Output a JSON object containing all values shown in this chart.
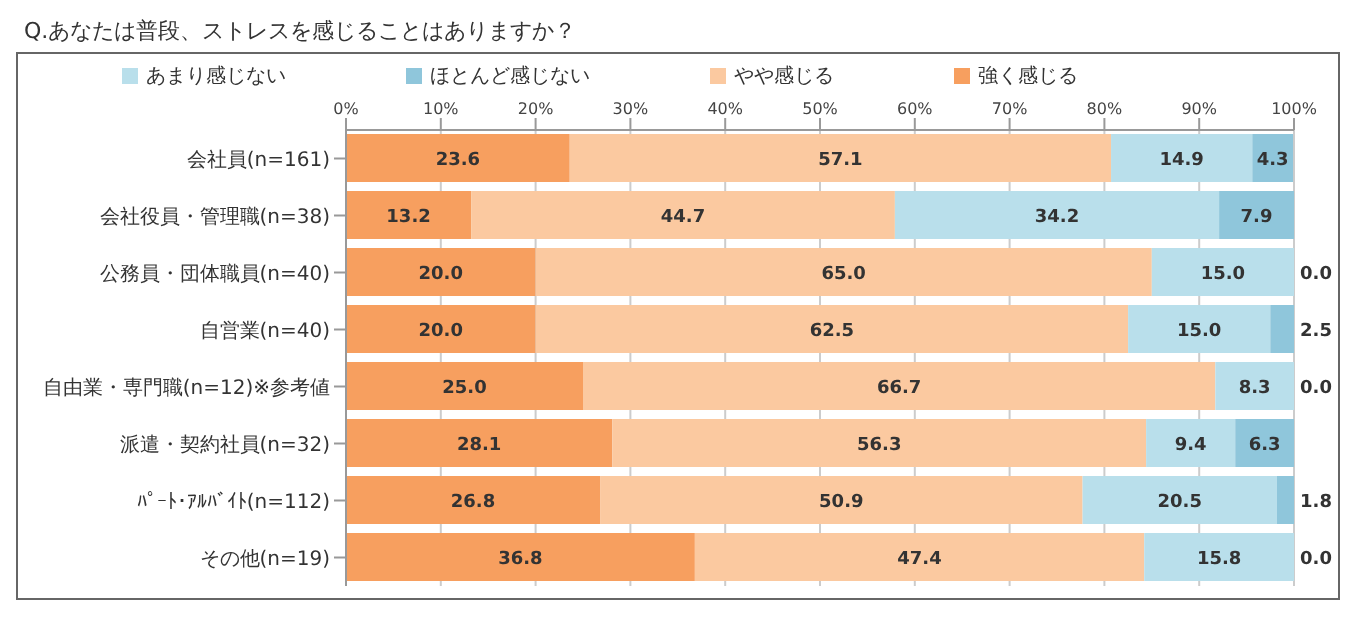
{
  "chart_data": {
    "type": "bar",
    "orientation": "horizontal",
    "stacked": true,
    "title": "Q.あなたは普段、ストレスを感じることはありますか？",
    "categories": [
      "会社員(n=161)",
      "会社役員・管理職(n=38)",
      "公務員・団体職員(n=40)",
      "自営業(n=40)",
      "自由業・専門職(n=12)※参考値",
      "派遣・契約社員(n=32)",
      "ﾊﾟｰﾄ･ｱﾙﾊﾞｲﾄ(n=112)",
      "その他(n=19)"
    ],
    "series": [
      {
        "name": "強く感じる",
        "color": "#f79f5f",
        "values": [
          23.6,
          13.2,
          20.0,
          20.0,
          25.0,
          28.1,
          26.8,
          36.8
        ],
        "value_labels": [
          "23.6",
          "13.2",
          "20.0",
          "20.0",
          "25.0",
          "28.1",
          "26.8",
          "36.8"
        ]
      },
      {
        "name": "やや感じる",
        "color": "#fbc9a0",
        "values": [
          57.1,
          44.7,
          65.0,
          62.5,
          66.7,
          56.3,
          50.9,
          47.4
        ],
        "value_labels": [
          "57.1",
          "44.7",
          "65.0",
          "62.5",
          "66.7",
          "56.3",
          "50.9",
          "47.4"
        ]
      },
      {
        "name": "あまり感じない",
        "color": "#b9dfeb",
        "values": [
          14.9,
          34.2,
          15.0,
          15.0,
          8.3,
          9.4,
          20.5,
          15.8
        ],
        "value_labels": [
          "14.9",
          "34.2",
          "15.0",
          "15.0",
          "8.3",
          "9.4",
          "20.5",
          "15.8"
        ]
      },
      {
        "name": "ほとんど感じない",
        "color": "#8fc6db",
        "values": [
          4.3,
          7.9,
          0.0,
          2.5,
          0.0,
          6.3,
          1.8,
          0.0
        ],
        "value_labels": [
          "4.3",
          "7.9",
          "0.0",
          "2.5",
          "0.0",
          "6.3",
          "1.8",
          "0.0"
        ]
      }
    ],
    "xlim": [
      0,
      100
    ],
    "xticks": [
      {
        "value": 0,
        "label": "0%"
      },
      {
        "value": 10,
        "label": "10%"
      },
      {
        "value": 20,
        "label": "20%"
      },
      {
        "value": 30,
        "label": "30%"
      },
      {
        "value": 40,
        "label": "40%"
      },
      {
        "value": 50,
        "label": "50%"
      },
      {
        "value": 60,
        "label": "60%"
      },
      {
        "value": 70,
        "label": "70%"
      },
      {
        "value": 80,
        "label": "80%"
      },
      {
        "value": 90,
        "label": "90%"
      },
      {
        "value": 100,
        "label": "100%"
      }
    ],
    "grid": "x",
    "legend": "top"
  }
}
